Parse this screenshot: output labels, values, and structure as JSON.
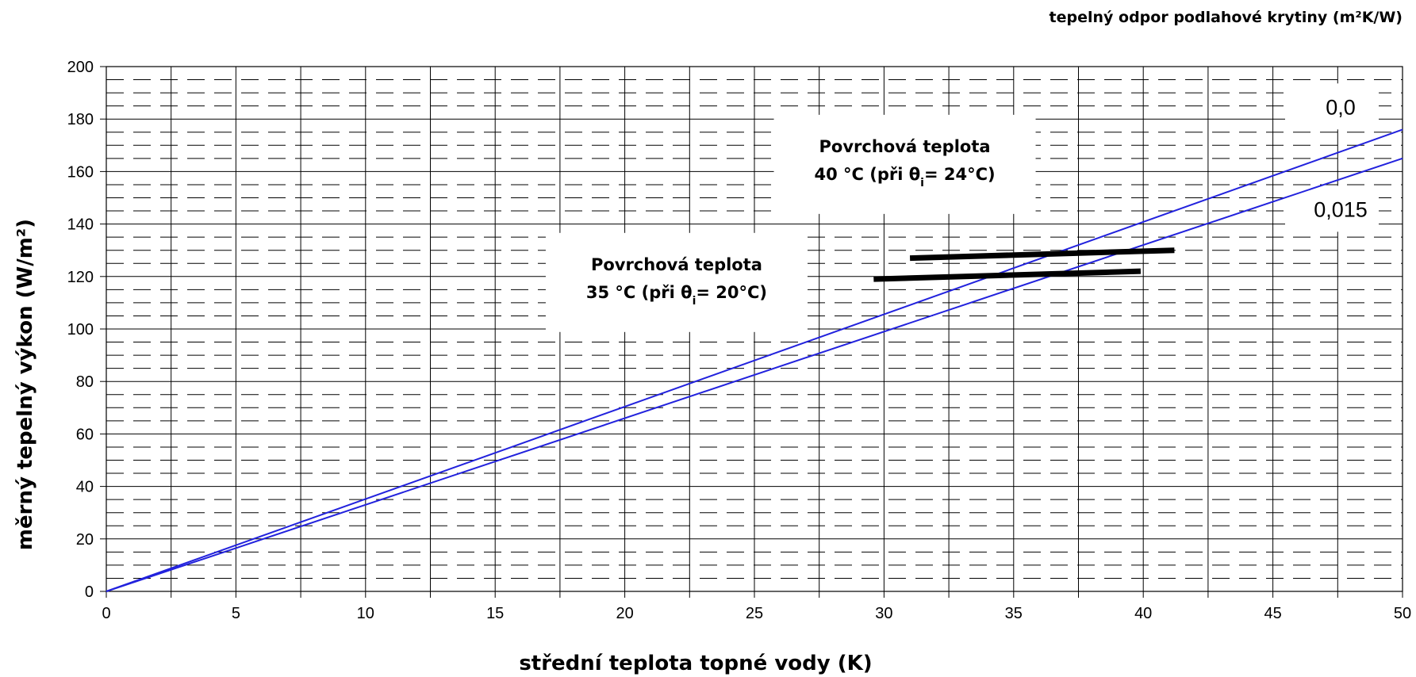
{
  "chart_data": {
    "type": "line",
    "legend_title": "tepelný odpor podlahové krytiny (m²K/W)",
    "xlabel": "střední teplota topné vody  (K)",
    "ylabel": "měrný tepelný výkon (W/m²)",
    "xlim": [
      0,
      50
    ],
    "ylim": [
      0,
      200
    ],
    "x_ticks": [
      0,
      5,
      10,
      15,
      20,
      25,
      30,
      35,
      40,
      45,
      50
    ],
    "y_ticks": [
      0,
      20,
      40,
      60,
      80,
      100,
      120,
      140,
      160,
      180,
      200
    ],
    "grid": true,
    "series": [
      {
        "name": "0,0",
        "color": "#2222dd",
        "x": [
          0,
          50
        ],
        "y": [
          0,
          176
        ]
      },
      {
        "name": "0,015",
        "color": "#2222dd",
        "x": [
          0,
          50
        ],
        "y": [
          0,
          165
        ]
      }
    ],
    "limit_lines": [
      {
        "color": "#000000",
        "x": [
          31,
          41.2
        ],
        "y": [
          127,
          130
        ]
      },
      {
        "color": "#000000",
        "x": [
          29.6,
          39.9
        ],
        "y": [
          119,
          122
        ]
      }
    ],
    "annotations": [
      {
        "line1": "Povrchová teplota",
        "line2_prefix": "40 °C (při  θ",
        "line2_sub": "i",
        "line2_suffix": "= 24°C)",
        "x": 30.8,
        "y": 165
      },
      {
        "line1": "Povrchová teplota",
        "line2_prefix": "35 °C (při  θ",
        "line2_sub": "i",
        "line2_suffix": "= 20°C)",
        "x": 22,
        "y": 120
      }
    ]
  }
}
